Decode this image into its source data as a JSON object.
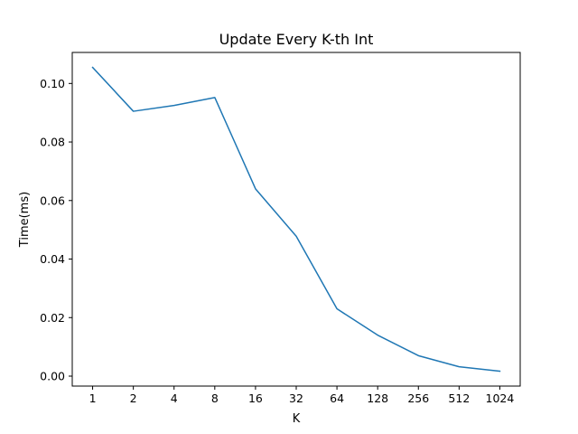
{
  "chart_data": {
    "type": "line",
    "title": "Update Every K-th Int",
    "xlabel": "K",
    "ylabel": "Time(ms)",
    "categories": [
      "1",
      "2",
      "4",
      "8",
      "16",
      "32",
      "64",
      "128",
      "256",
      "512",
      "1024"
    ],
    "series": [
      {
        "values": [
          0.1055,
          0.0905,
          0.0925,
          0.0952,
          0.064,
          0.0478,
          0.023,
          0.014,
          0.007,
          0.0032,
          0.0017
        ],
        "color": "#1f77b4"
      }
    ],
    "ylim": [
      -0.0034,
      0.1106
    ],
    "yticks": [
      0.0,
      0.02,
      0.04,
      0.06,
      0.08,
      0.1
    ],
    "ytick_labels": [
      "0.00",
      "0.02",
      "0.04",
      "0.06",
      "0.08",
      "0.10"
    ],
    "grid": false,
    "legend": false
  }
}
